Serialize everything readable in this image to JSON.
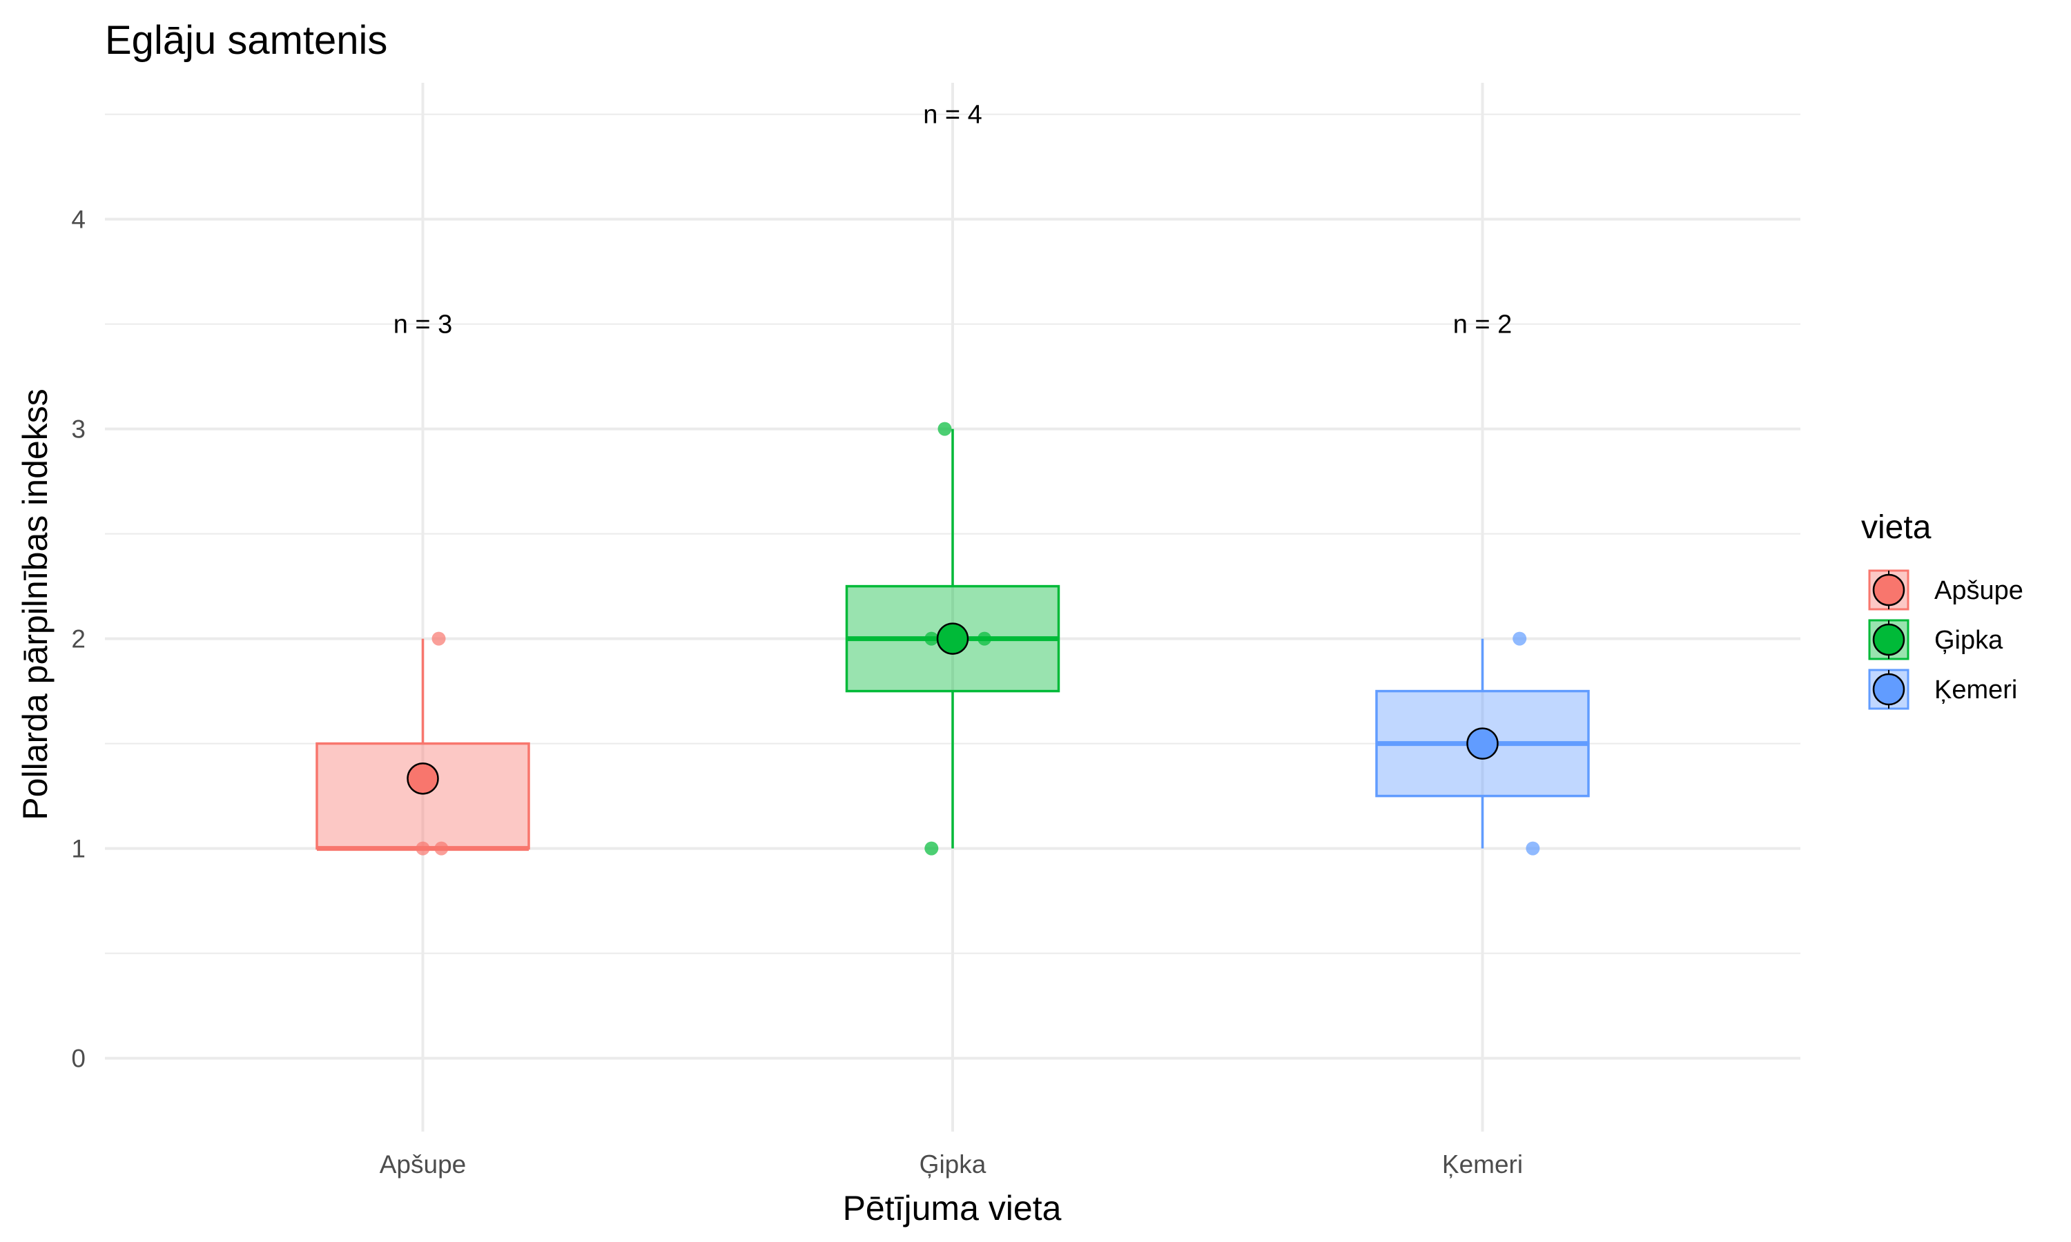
{
  "chart_data": {
    "type": "boxplot",
    "title": "Eglāju samtenis",
    "xlabel": "Pētījuma vieta",
    "ylabel": "Pollarda pārpilnības indekss",
    "categories": [
      "Apšupe",
      "Ģipka",
      "Ķemeri"
    ],
    "ylim": [
      -0.35,
      4.65
    ],
    "yticks": [
      0,
      1,
      2,
      3,
      4
    ],
    "grid": true,
    "legend_title": "vieta",
    "legend_position": "right",
    "groups": [
      {
        "name": "Apšupe",
        "color": "#F8766D",
        "q1": 1,
        "median": 1,
        "q3": 1.5,
        "whisker_low": 1,
        "whisker_high": 2,
        "mean": 1.333,
        "points": [
          {
            "x_offset": 0.03,
            "y": 2
          },
          {
            "x_offset": 0.0,
            "y": 1
          },
          {
            "x_offset": 0.035,
            "y": 1
          }
        ],
        "n_label": "n = 3",
        "n_label_y": 3.5
      },
      {
        "name": "Ģipka",
        "color": "#00BA38",
        "q1": 1.75,
        "median": 2,
        "q3": 2.25,
        "whisker_low": 1,
        "whisker_high": 3,
        "mean": 2,
        "points": [
          {
            "x_offset": -0.015,
            "y": 3
          },
          {
            "x_offset": -0.04,
            "y": 1
          },
          {
            "x_offset": -0.04,
            "y": 2
          },
          {
            "x_offset": 0.06,
            "y": 2
          }
        ],
        "n_label": "n = 4",
        "n_label_y": 4.5
      },
      {
        "name": "Ķemeri",
        "color": "#619CFF",
        "q1": 1.25,
        "median": 1.5,
        "q3": 1.75,
        "whisker_low": 1,
        "whisker_high": 2,
        "mean": 1.5,
        "points": [
          {
            "x_offset": 0.07,
            "y": 2
          },
          {
            "x_offset": 0.095,
            "y": 1
          }
        ],
        "n_label": "n = 2",
        "n_label_y": 3.5
      }
    ]
  }
}
